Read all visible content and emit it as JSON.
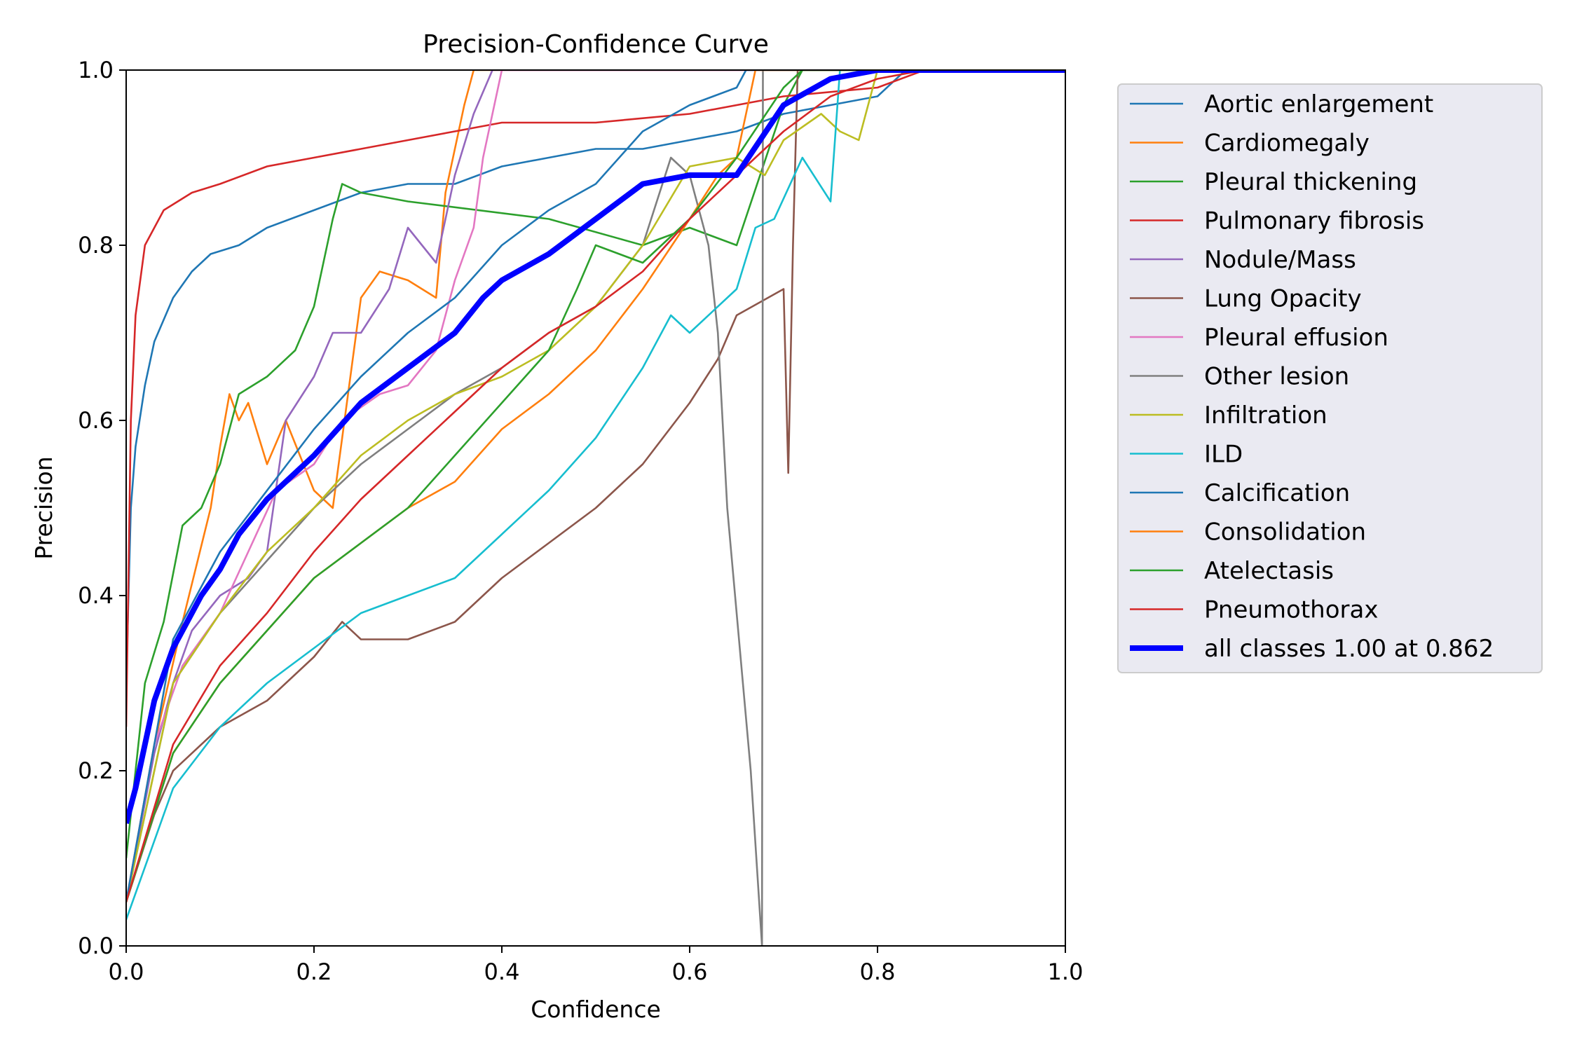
{
  "chart_data": {
    "type": "line",
    "title": "Precision-Confidence Curve",
    "xlabel": "Confidence",
    "ylabel": "Precision",
    "xlim": [
      0,
      1
    ],
    "ylim": [
      0,
      1
    ],
    "xticks": [
      "0.0",
      "0.2",
      "0.4",
      "0.6",
      "0.8",
      "1.0"
    ],
    "yticks": [
      "0.0",
      "0.2",
      "0.4",
      "0.6",
      "0.8",
      "1.0"
    ],
    "grid": false,
    "legend_position": "outside-right-top",
    "series": [
      {
        "name": "Aortic enlargement",
        "color": "#1f77b4",
        "points": [
          [
            0.0,
            0.3
          ],
          [
            0.005,
            0.5
          ],
          [
            0.01,
            0.57
          ],
          [
            0.02,
            0.64
          ],
          [
            0.03,
            0.69
          ],
          [
            0.05,
            0.74
          ],
          [
            0.07,
            0.77
          ],
          [
            0.09,
            0.79
          ],
          [
            0.12,
            0.8
          ],
          [
            0.15,
            0.82
          ],
          [
            0.2,
            0.84
          ],
          [
            0.25,
            0.86
          ],
          [
            0.3,
            0.87
          ],
          [
            0.35,
            0.87
          ],
          [
            0.4,
            0.89
          ],
          [
            0.45,
            0.9
          ],
          [
            0.5,
            0.91
          ],
          [
            0.55,
            0.91
          ],
          [
            0.6,
            0.92
          ],
          [
            0.65,
            0.93
          ],
          [
            0.7,
            0.95
          ],
          [
            0.75,
            0.96
          ],
          [
            0.8,
            0.97
          ],
          [
            0.83,
            1.0
          ],
          [
            1.0,
            1.0
          ]
        ]
      },
      {
        "name": "Cardiomegaly",
        "color": "#ff7f0e",
        "points": [
          [
            0.0,
            0.05
          ],
          [
            0.03,
            0.23
          ],
          [
            0.06,
            0.37
          ],
          [
            0.09,
            0.5
          ],
          [
            0.1,
            0.57
          ],
          [
            0.11,
            0.63
          ],
          [
            0.12,
            0.6
          ],
          [
            0.13,
            0.62
          ],
          [
            0.15,
            0.55
          ],
          [
            0.17,
            0.6
          ],
          [
            0.2,
            0.52
          ],
          [
            0.22,
            0.5
          ],
          [
            0.25,
            0.74
          ],
          [
            0.27,
            0.77
          ],
          [
            0.3,
            0.76
          ],
          [
            0.33,
            0.74
          ],
          [
            0.34,
            0.86
          ],
          [
            0.36,
            0.96
          ],
          [
            0.37,
            1.0
          ],
          [
            1.0,
            1.0
          ]
        ]
      },
      {
        "name": "Pleural thickening",
        "color": "#2ca02c",
        "points": [
          [
            0.0,
            0.1
          ],
          [
            0.02,
            0.3
          ],
          [
            0.04,
            0.37
          ],
          [
            0.06,
            0.48
          ],
          [
            0.08,
            0.5
          ],
          [
            0.1,
            0.55
          ],
          [
            0.12,
            0.63
          ],
          [
            0.15,
            0.65
          ],
          [
            0.18,
            0.68
          ],
          [
            0.2,
            0.73
          ],
          [
            0.22,
            0.83
          ],
          [
            0.23,
            0.87
          ],
          [
            0.25,
            0.86
          ],
          [
            0.3,
            0.85
          ],
          [
            0.45,
            0.83
          ],
          [
            0.55,
            0.8
          ],
          [
            0.6,
            0.82
          ],
          [
            0.65,
            0.8
          ],
          [
            0.7,
            0.96
          ],
          [
            0.72,
            1.0
          ],
          [
            1.0,
            1.0
          ]
        ]
      },
      {
        "name": "Pulmonary fibrosis",
        "color": "#d62728",
        "points": [
          [
            0.0,
            0.25
          ],
          [
            0.005,
            0.6
          ],
          [
            0.01,
            0.72
          ],
          [
            0.02,
            0.8
          ],
          [
            0.04,
            0.84
          ],
          [
            0.07,
            0.86
          ],
          [
            0.1,
            0.87
          ],
          [
            0.15,
            0.89
          ],
          [
            0.2,
            0.9
          ],
          [
            0.25,
            0.91
          ],
          [
            0.3,
            0.92
          ],
          [
            0.35,
            0.93
          ],
          [
            0.4,
            0.94
          ],
          [
            0.5,
            0.94
          ],
          [
            0.6,
            0.95
          ],
          [
            0.7,
            0.97
          ],
          [
            0.8,
            0.98
          ],
          [
            0.85,
            1.0
          ],
          [
            1.0,
            1.0
          ]
        ]
      },
      {
        "name": "Nodule/Mass",
        "color": "#9467bd",
        "points": [
          [
            0.0,
            0.05
          ],
          [
            0.03,
            0.22
          ],
          [
            0.05,
            0.3
          ],
          [
            0.07,
            0.36
          ],
          [
            0.1,
            0.4
          ],
          [
            0.13,
            0.42
          ],
          [
            0.15,
            0.45
          ],
          [
            0.17,
            0.6
          ],
          [
            0.2,
            0.65
          ],
          [
            0.22,
            0.7
          ],
          [
            0.25,
            0.7
          ],
          [
            0.28,
            0.75
          ],
          [
            0.3,
            0.82
          ],
          [
            0.33,
            0.78
          ],
          [
            0.35,
            0.88
          ],
          [
            0.37,
            0.95
          ],
          [
            0.39,
            1.0
          ],
          [
            1.0,
            1.0
          ]
        ]
      },
      {
        "name": "Lung Opacity",
        "color": "#8c564b",
        "points": [
          [
            0.0,
            0.05
          ],
          [
            0.03,
            0.15
          ],
          [
            0.05,
            0.2
          ],
          [
            0.1,
            0.25
          ],
          [
            0.15,
            0.28
          ],
          [
            0.2,
            0.33
          ],
          [
            0.23,
            0.37
          ],
          [
            0.25,
            0.35
          ],
          [
            0.3,
            0.35
          ],
          [
            0.35,
            0.37
          ],
          [
            0.4,
            0.42
          ],
          [
            0.45,
            0.46
          ],
          [
            0.5,
            0.5
          ],
          [
            0.55,
            0.55
          ],
          [
            0.6,
            0.62
          ],
          [
            0.63,
            0.67
          ],
          [
            0.65,
            0.72
          ],
          [
            0.7,
            0.75
          ],
          [
            0.705,
            0.54
          ],
          [
            0.71,
            0.8
          ],
          [
            0.715,
            1.0
          ],
          [
            1.0,
            1.0
          ]
        ]
      },
      {
        "name": "Pleural effusion",
        "color": "#e377c2",
        "points": [
          [
            0.0,
            0.05
          ],
          [
            0.03,
            0.23
          ],
          [
            0.06,
            0.32
          ],
          [
            0.1,
            0.38
          ],
          [
            0.13,
            0.45
          ],
          [
            0.16,
            0.52
          ],
          [
            0.2,
            0.55
          ],
          [
            0.23,
            0.6
          ],
          [
            0.27,
            0.63
          ],
          [
            0.3,
            0.64
          ],
          [
            0.33,
            0.68
          ],
          [
            0.35,
            0.76
          ],
          [
            0.37,
            0.82
          ],
          [
            0.38,
            0.9
          ],
          [
            0.4,
            1.0
          ],
          [
            1.0,
            1.0
          ]
        ]
      },
      {
        "name": "Other lesion",
        "color": "#7f7f7f",
        "points": [
          [
            0.0,
            0.05
          ],
          [
            0.05,
            0.3
          ],
          [
            0.1,
            0.38
          ],
          [
            0.15,
            0.44
          ],
          [
            0.2,
            0.5
          ],
          [
            0.25,
            0.55
          ],
          [
            0.3,
            0.59
          ],
          [
            0.35,
            0.63
          ],
          [
            0.4,
            0.66
          ],
          [
            0.45,
            0.7
          ],
          [
            0.5,
            0.73
          ],
          [
            0.55,
            0.8
          ],
          [
            0.58,
            0.9
          ],
          [
            0.6,
            0.88
          ],
          [
            0.62,
            0.8
          ],
          [
            0.63,
            0.7
          ],
          [
            0.64,
            0.5
          ],
          [
            0.665,
            0.2
          ],
          [
            0.677,
            0.0
          ],
          [
            0.678,
            1.0
          ],
          [
            1.0,
            1.0
          ]
        ]
      },
      {
        "name": "Infiltration",
        "color": "#bcbd22",
        "points": [
          [
            0.0,
            0.05
          ],
          [
            0.05,
            0.3
          ],
          [
            0.1,
            0.38
          ],
          [
            0.15,
            0.45
          ],
          [
            0.2,
            0.5
          ],
          [
            0.25,
            0.56
          ],
          [
            0.3,
            0.6
          ],
          [
            0.35,
            0.63
          ],
          [
            0.4,
            0.65
          ],
          [
            0.45,
            0.68
          ],
          [
            0.5,
            0.73
          ],
          [
            0.55,
            0.8
          ],
          [
            0.6,
            0.89
          ],
          [
            0.65,
            0.9
          ],
          [
            0.68,
            0.88
          ],
          [
            0.7,
            0.92
          ],
          [
            0.74,
            0.95
          ],
          [
            0.76,
            0.93
          ],
          [
            0.78,
            0.92
          ],
          [
            0.8,
            1.0
          ],
          [
            1.0,
            1.0
          ]
        ]
      },
      {
        "name": "ILD",
        "color": "#17becf",
        "points": [
          [
            0.0,
            0.03
          ],
          [
            0.03,
            0.12
          ],
          [
            0.05,
            0.18
          ],
          [
            0.1,
            0.25
          ],
          [
            0.15,
            0.3
          ],
          [
            0.2,
            0.34
          ],
          [
            0.25,
            0.38
          ],
          [
            0.3,
            0.4
          ],
          [
            0.35,
            0.42
          ],
          [
            0.4,
            0.47
          ],
          [
            0.45,
            0.52
          ],
          [
            0.5,
            0.58
          ],
          [
            0.55,
            0.66
          ],
          [
            0.58,
            0.72
          ],
          [
            0.6,
            0.7
          ],
          [
            0.65,
            0.75
          ],
          [
            0.67,
            0.82
          ],
          [
            0.69,
            0.83
          ],
          [
            0.72,
            0.9
          ],
          [
            0.75,
            0.85
          ],
          [
            0.76,
            1.0
          ],
          [
            1.0,
            1.0
          ]
        ]
      },
      {
        "name": "Calcification",
        "color": "#1f77b4",
        "points": [
          [
            0.0,
            0.05
          ],
          [
            0.05,
            0.35
          ],
          [
            0.1,
            0.45
          ],
          [
            0.15,
            0.52
          ],
          [
            0.2,
            0.59
          ],
          [
            0.25,
            0.65
          ],
          [
            0.3,
            0.7
          ],
          [
            0.35,
            0.74
          ],
          [
            0.4,
            0.8
          ],
          [
            0.45,
            0.84
          ],
          [
            0.5,
            0.87
          ],
          [
            0.55,
            0.93
          ],
          [
            0.6,
            0.96
          ],
          [
            0.65,
            0.98
          ],
          [
            0.66,
            1.0
          ],
          [
            1.0,
            1.0
          ]
        ]
      },
      {
        "name": "Consolidation",
        "color": "#ff7f0e",
        "points": [
          [
            0.0,
            0.05
          ],
          [
            0.05,
            0.22
          ],
          [
            0.1,
            0.3
          ],
          [
            0.15,
            0.36
          ],
          [
            0.2,
            0.42
          ],
          [
            0.25,
            0.46
          ],
          [
            0.3,
            0.5
          ],
          [
            0.35,
            0.53
          ],
          [
            0.4,
            0.59
          ],
          [
            0.45,
            0.63
          ],
          [
            0.5,
            0.68
          ],
          [
            0.55,
            0.75
          ],
          [
            0.6,
            0.83
          ],
          [
            0.63,
            0.88
          ],
          [
            0.65,
            0.9
          ],
          [
            0.67,
            1.0
          ],
          [
            1.0,
            1.0
          ]
        ]
      },
      {
        "name": "Atelectasis",
        "color": "#2ca02c",
        "points": [
          [
            0.0,
            0.05
          ],
          [
            0.05,
            0.22
          ],
          [
            0.1,
            0.3
          ],
          [
            0.15,
            0.36
          ],
          [
            0.2,
            0.42
          ],
          [
            0.25,
            0.46
          ],
          [
            0.3,
            0.5
          ],
          [
            0.35,
            0.56
          ],
          [
            0.4,
            0.62
          ],
          [
            0.45,
            0.68
          ],
          [
            0.48,
            0.75
          ],
          [
            0.5,
            0.8
          ],
          [
            0.55,
            0.78
          ],
          [
            0.6,
            0.83
          ],
          [
            0.65,
            0.9
          ],
          [
            0.7,
            0.98
          ],
          [
            0.72,
            1.0
          ],
          [
            1.0,
            1.0
          ]
        ]
      },
      {
        "name": "Pneumothorax",
        "color": "#d62728",
        "points": [
          [
            0.0,
            0.05
          ],
          [
            0.05,
            0.23
          ],
          [
            0.1,
            0.32
          ],
          [
            0.15,
            0.38
          ],
          [
            0.2,
            0.45
          ],
          [
            0.25,
            0.51
          ],
          [
            0.3,
            0.56
          ],
          [
            0.35,
            0.61
          ],
          [
            0.4,
            0.66
          ],
          [
            0.45,
            0.7
          ],
          [
            0.5,
            0.73
          ],
          [
            0.55,
            0.77
          ],
          [
            0.6,
            0.83
          ],
          [
            0.65,
            0.88
          ],
          [
            0.7,
            0.93
          ],
          [
            0.75,
            0.97
          ],
          [
            0.8,
            0.99
          ],
          [
            0.85,
            1.0
          ],
          [
            1.0,
            1.0
          ]
        ]
      },
      {
        "name": "all classes 1.00 at 0.862",
        "color": "#0000ff",
        "bold": true,
        "points": [
          [
            0.0,
            0.14
          ],
          [
            0.01,
            0.18
          ],
          [
            0.03,
            0.28
          ],
          [
            0.05,
            0.34
          ],
          [
            0.08,
            0.4
          ],
          [
            0.1,
            0.43
          ],
          [
            0.12,
            0.47
          ],
          [
            0.15,
            0.51
          ],
          [
            0.2,
            0.56
          ],
          [
            0.25,
            0.62
          ],
          [
            0.3,
            0.66
          ],
          [
            0.35,
            0.7
          ],
          [
            0.38,
            0.74
          ],
          [
            0.4,
            0.76
          ],
          [
            0.45,
            0.79
          ],
          [
            0.5,
            0.83
          ],
          [
            0.55,
            0.87
          ],
          [
            0.6,
            0.88
          ],
          [
            0.63,
            0.88
          ],
          [
            0.65,
            0.88
          ],
          [
            0.7,
            0.96
          ],
          [
            0.75,
            0.99
          ],
          [
            0.8,
            1.0
          ],
          [
            0.862,
            1.0
          ],
          [
            1.0,
            1.0
          ]
        ]
      }
    ]
  }
}
